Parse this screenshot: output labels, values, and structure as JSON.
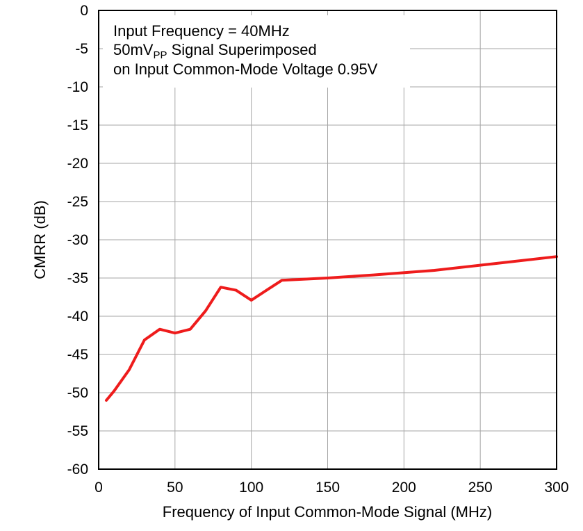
{
  "chart_data": {
    "type": "line",
    "title": "",
    "xlabel": "Frequency of Input Common-Mode Signal  (MHz)",
    "ylabel": "CMRR (dB)",
    "xlim": [
      0,
      300
    ],
    "ylim": [
      -60,
      0
    ],
    "xticks": [
      0,
      50,
      100,
      150,
      200,
      250,
      300
    ],
    "yticks": [
      0,
      -5,
      -10,
      -15,
      -20,
      -25,
      -30,
      -35,
      -40,
      -45,
      -50,
      -55,
      -60
    ],
    "xtick_labels": [
      "0",
      "50",
      "100",
      "150",
      "200",
      "250",
      "300"
    ],
    "ytick_labels": [
      "0",
      "-5",
      "-10",
      "-15",
      "-20",
      "-25",
      "-30",
      "-35",
      "-40",
      "-45",
      "-50",
      "-55",
      "-60"
    ],
    "grid": true,
    "annotations": {
      "line1": "Input Frequency = 40MHz",
      "line2_prefix": "50mV",
      "line2_subscript": "PP",
      "line2_suffix": " Signal Superimposed",
      "line3": "on Input Common-Mode Voltage 0.95V"
    },
    "series": [
      {
        "name": "CMRR",
        "color": "#ee1c1c",
        "x": [
          5,
          10,
          20,
          30,
          40,
          50,
          60,
          70,
          80,
          90,
          100,
          110,
          120,
          150,
          180,
          220,
          260,
          300
        ],
        "y": [
          -51.0,
          -49.8,
          -47.0,
          -43.1,
          -41.7,
          -42.2,
          -41.7,
          -39.3,
          -36.2,
          -36.6,
          -37.9,
          -36.6,
          -35.3,
          -35.0,
          -34.6,
          -34.0,
          -33.1,
          -32.2
        ]
      }
    ]
  }
}
